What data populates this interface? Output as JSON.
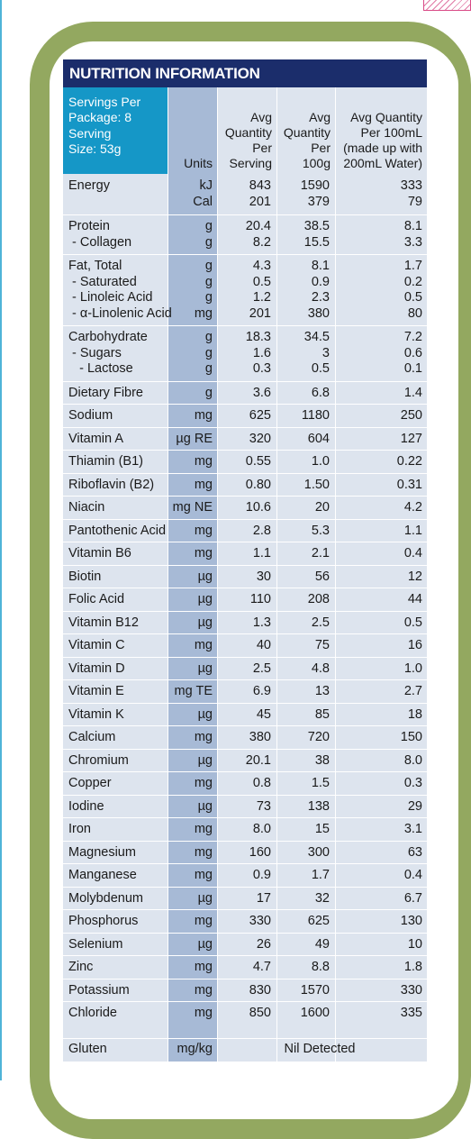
{
  "title": "NUTRITION INFORMATION",
  "header": {
    "servings_line1": "Servings Per",
    "servings_line2": "Package: 8",
    "serving_line1": "Serving",
    "serving_line2": "Size: 53g",
    "units": "Units",
    "per_serving": [
      "Avg",
      "Quantity",
      "Per",
      "Serving"
    ],
    "per_100g": [
      "Avg",
      "Quantity",
      "Per",
      "100g"
    ],
    "per_100ml": [
      "Avg Quantity",
      "Per 100mL",
      "(made up with",
      "200mL Water)"
    ]
  },
  "rows": [
    {
      "names": [
        "Energy",
        ""
      ],
      "units": [
        "kJ",
        "Cal"
      ],
      "serving": [
        "843",
        "201"
      ],
      "per100g": [
        "1590",
        "379"
      ],
      "per100ml": [
        "333",
        "79"
      ]
    },
    {
      "names": [
        "Protein",
        " - Collagen"
      ],
      "units": [
        "g",
        "g"
      ],
      "serving": [
        "20.4",
        "8.2"
      ],
      "per100g": [
        "38.5",
        "15.5"
      ],
      "per100ml": [
        "8.1",
        "3.3"
      ]
    },
    {
      "names": [
        "Fat, Total",
        " - Saturated",
        " - Linoleic Acid",
        " - α-Linolenic Acid"
      ],
      "units": [
        "g",
        "g",
        "g",
        "mg"
      ],
      "serving": [
        "4.3",
        "0.5",
        "1.2",
        "201"
      ],
      "per100g": [
        "8.1",
        "0.9",
        "2.3",
        "380"
      ],
      "per100ml": [
        "1.7",
        "0.2",
        "0.5",
        "80"
      ]
    },
    {
      "names": [
        "Carbohydrate",
        " - Sugars",
        "   - Lactose"
      ],
      "units": [
        "g",
        "g",
        "g"
      ],
      "serving": [
        "18.3",
        "1.6",
        "0.3"
      ],
      "per100g": [
        "34.5",
        "3",
        "0.5"
      ],
      "per100ml": [
        "7.2",
        "0.6",
        "0.1"
      ]
    },
    {
      "names": [
        "Dietary Fibre"
      ],
      "units": [
        "g"
      ],
      "serving": [
        "3.6"
      ],
      "per100g": [
        "6.8"
      ],
      "per100ml": [
        "1.4"
      ]
    },
    {
      "names": [
        "Sodium"
      ],
      "units": [
        "mg"
      ],
      "serving": [
        "625"
      ],
      "per100g": [
        "1180"
      ],
      "per100ml": [
        "250"
      ]
    },
    {
      "names": [
        "Vitamin A"
      ],
      "units": [
        "µg RE"
      ],
      "serving": [
        "320"
      ],
      "per100g": [
        "604"
      ],
      "per100ml": [
        "127"
      ]
    },
    {
      "names": [
        "Thiamin (B1)"
      ],
      "units": [
        "mg"
      ],
      "serving": [
        "0.55"
      ],
      "per100g": [
        "1.0"
      ],
      "per100ml": [
        "0.22"
      ]
    },
    {
      "names": [
        "Riboflavin (B2)"
      ],
      "units": [
        "mg"
      ],
      "serving": [
        "0.80"
      ],
      "per100g": [
        "1.50"
      ],
      "per100ml": [
        "0.31"
      ]
    },
    {
      "names": [
        "Niacin"
      ],
      "units": [
        "mg NE"
      ],
      "serving": [
        "10.6"
      ],
      "per100g": [
        "20"
      ],
      "per100ml": [
        "4.2"
      ]
    },
    {
      "names": [
        "Pantothenic Acid"
      ],
      "units": [
        "mg"
      ],
      "serving": [
        "2.8"
      ],
      "per100g": [
        "5.3"
      ],
      "per100ml": [
        "1.1"
      ]
    },
    {
      "names": [
        "Vitamin B6"
      ],
      "units": [
        "mg"
      ],
      "serving": [
        "1.1"
      ],
      "per100g": [
        "2.1"
      ],
      "per100ml": [
        "0.4"
      ]
    },
    {
      "names": [
        "Biotin"
      ],
      "units": [
        "µg"
      ],
      "serving": [
        "30"
      ],
      "per100g": [
        "56"
      ],
      "per100ml": [
        "12"
      ]
    },
    {
      "names": [
        "Folic Acid"
      ],
      "units": [
        "µg"
      ],
      "serving": [
        "110"
      ],
      "per100g": [
        "208"
      ],
      "per100ml": [
        "44"
      ]
    },
    {
      "names": [
        "Vitamin B12"
      ],
      "units": [
        "µg"
      ],
      "serving": [
        "1.3"
      ],
      "per100g": [
        "2.5"
      ],
      "per100ml": [
        "0.5"
      ]
    },
    {
      "names": [
        "Vitamin C"
      ],
      "units": [
        "mg"
      ],
      "serving": [
        "40"
      ],
      "per100g": [
        "75"
      ],
      "per100ml": [
        "16"
      ]
    },
    {
      "names": [
        "Vitamin D"
      ],
      "units": [
        "µg"
      ],
      "serving": [
        "2.5"
      ],
      "per100g": [
        "4.8"
      ],
      "per100ml": [
        "1.0"
      ]
    },
    {
      "names": [
        "Vitamin E"
      ],
      "units": [
        "mg TE"
      ],
      "serving": [
        "6.9"
      ],
      "per100g": [
        "13"
      ],
      "per100ml": [
        "2.7"
      ]
    },
    {
      "names": [
        "Vitamin K"
      ],
      "units": [
        "µg"
      ],
      "serving": [
        "45"
      ],
      "per100g": [
        "85"
      ],
      "per100ml": [
        "18"
      ]
    },
    {
      "names": [
        "Calcium"
      ],
      "units": [
        "mg"
      ],
      "serving": [
        "380"
      ],
      "per100g": [
        "720"
      ],
      "per100ml": [
        "150"
      ]
    },
    {
      "names": [
        "Chromium"
      ],
      "units": [
        "µg"
      ],
      "serving": [
        "20.1"
      ],
      "per100g": [
        "38"
      ],
      "per100ml": [
        "8.0"
      ]
    },
    {
      "names": [
        "Copper"
      ],
      "units": [
        "mg"
      ],
      "serving": [
        "0.8"
      ],
      "per100g": [
        "1.5"
      ],
      "per100ml": [
        "0.3"
      ]
    },
    {
      "names": [
        "Iodine"
      ],
      "units": [
        "µg"
      ],
      "serving": [
        "73"
      ],
      "per100g": [
        "138"
      ],
      "per100ml": [
        "29"
      ]
    },
    {
      "names": [
        "Iron"
      ],
      "units": [
        "mg"
      ],
      "serving": [
        "8.0"
      ],
      "per100g": [
        "15"
      ],
      "per100ml": [
        "3.1"
      ]
    },
    {
      "names": [
        "Magnesium"
      ],
      "units": [
        "mg"
      ],
      "serving": [
        "160"
      ],
      "per100g": [
        "300"
      ],
      "per100ml": [
        "63"
      ]
    },
    {
      "names": [
        "Manganese"
      ],
      "units": [
        "mg"
      ],
      "serving": [
        "0.9"
      ],
      "per100g": [
        "1.7"
      ],
      "per100ml": [
        "0.4"
      ]
    },
    {
      "names": [
        "Molybdenum"
      ],
      "units": [
        "µg"
      ],
      "serving": [
        "17"
      ],
      "per100g": [
        "32"
      ],
      "per100ml": [
        "6.7"
      ]
    },
    {
      "names": [
        "Phosphorus"
      ],
      "units": [
        "mg"
      ],
      "serving": [
        "330"
      ],
      "per100g": [
        "625"
      ],
      "per100ml": [
        "130"
      ]
    },
    {
      "names": [
        "Selenium"
      ],
      "units": [
        "µg"
      ],
      "serving": [
        "26"
      ],
      "per100g": [
        "49"
      ],
      "per100ml": [
        "10"
      ]
    },
    {
      "names": [
        "Zinc"
      ],
      "units": [
        "mg"
      ],
      "serving": [
        "4.7"
      ],
      "per100g": [
        "8.8"
      ],
      "per100ml": [
        "1.8"
      ]
    },
    {
      "names": [
        "Potassium"
      ],
      "units": [
        "mg"
      ],
      "serving": [
        "830"
      ],
      "per100g": [
        "1570"
      ],
      "per100ml": [
        "330"
      ]
    },
    {
      "names": [
        "Chloride"
      ],
      "units": [
        "mg"
      ],
      "serving": [
        "850"
      ],
      "per100g": [
        "1600"
      ],
      "per100ml": [
        "335"
      ]
    }
  ],
  "gluten": {
    "name": "Gluten",
    "units": "mg/kg",
    "value": "Nil Detected"
  },
  "colors": {
    "title_bar": "#1b2d6b",
    "serving_header": "#1597c7",
    "units_column": "#a7bad6",
    "panel": "#dde4ee",
    "frame": "#93a860"
  }
}
